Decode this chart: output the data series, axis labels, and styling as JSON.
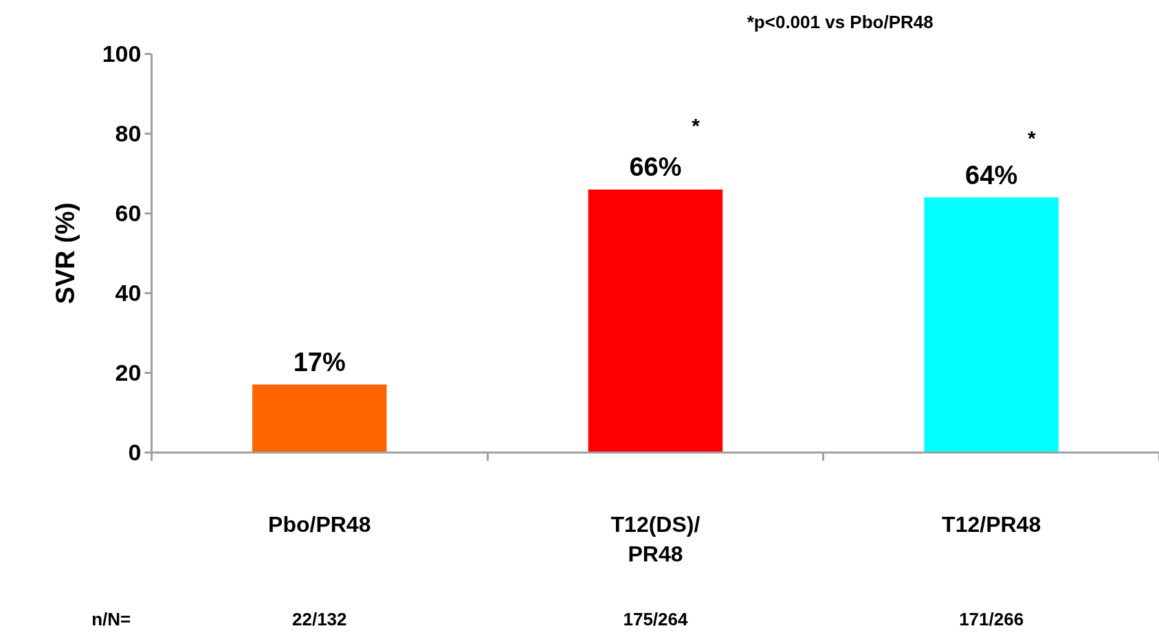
{
  "chart_data": {
    "type": "bar",
    "ylabel": "SVR (%)",
    "categories": [
      "Pbo/PR48",
      "T12(DS)/\nPR48",
      "T12/PR48"
    ],
    "values": [
      17,
      66,
      64
    ],
    "colors": [
      "#ff6600",
      "#ff0000",
      "#00ffff"
    ],
    "value_labels": [
      "17%",
      "66%",
      "64%"
    ],
    "ylim": [
      0,
      100
    ],
    "yticks": [
      0,
      20,
      40,
      60,
      80,
      100
    ],
    "annotations": [
      "*p<0.001 vs Pbo/PR48",
      "n/N=",
      "*",
      "*",
      "22/132",
      "175/264",
      "171/266"
    ]
  }
}
